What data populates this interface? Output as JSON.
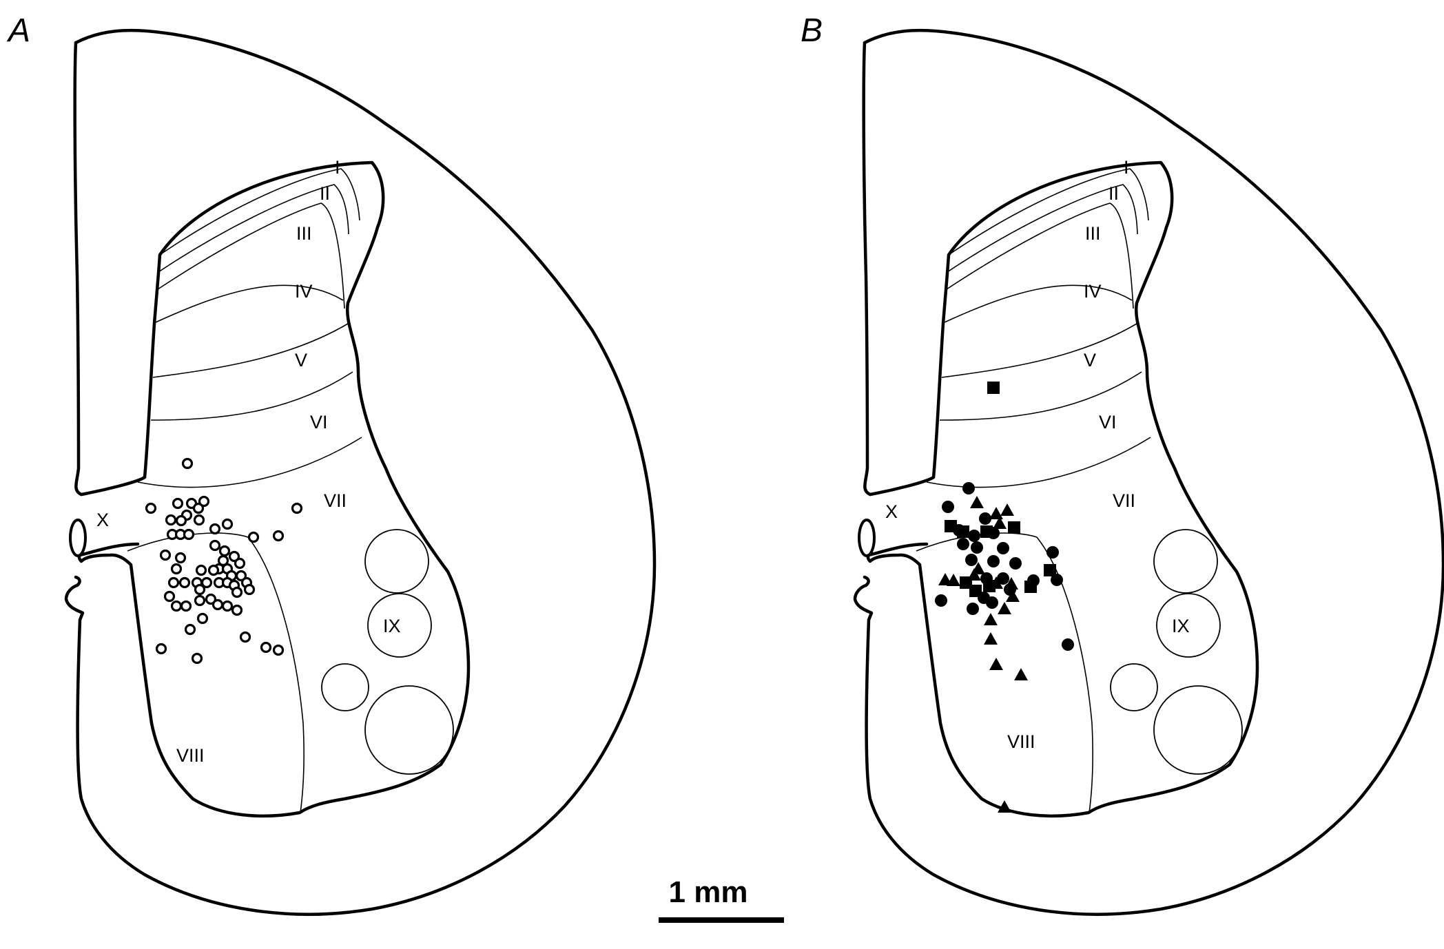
{
  "panels": [
    {
      "id": "A",
      "label": "A",
      "laminae": [
        "I",
        "II",
        "III",
        "IV",
        "V",
        "VI",
        "VII",
        "VIII",
        "IX",
        "X"
      ]
    },
    {
      "id": "B",
      "label": "B",
      "laminae": [
        "I",
        "II",
        "III",
        "IV",
        "V",
        "VI",
        "VII",
        "VIII",
        "IX",
        "X"
      ]
    }
  ],
  "scale_bar": {
    "label": "1 mm"
  },
  "markers": {
    "A": {
      "open_circles": 58
    },
    "B": {
      "filled_circles": 23,
      "filled_triangles": 17,
      "filled_squares": 10
    }
  }
}
